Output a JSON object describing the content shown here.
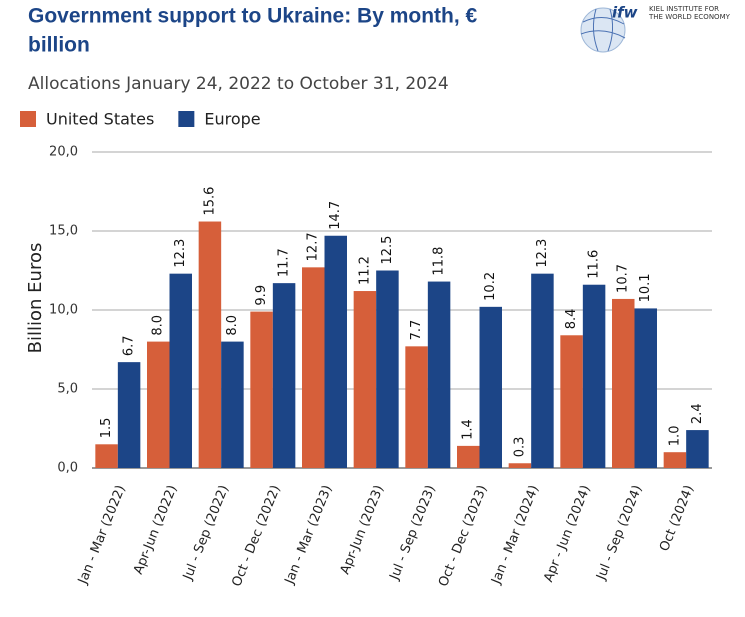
{
  "logo": {
    "mark": "ifw",
    "name": [
      "KIEL INSTITUTE FOR",
      "THE WORLD ECONOMY"
    ]
  },
  "chart_data": {
    "type": "bar",
    "title": [
      "Government support to Ukraine: By month, €",
      "billion"
    ],
    "subtitle": "Allocations January 24, 2022 to October 31, 2024",
    "y_label": "Billion Euros",
    "categories": [
      "Jan - Mar (2022)",
      "Apr-Jun (2022)",
      "Jul - Sep (2022)",
      "Oct - Dec (2022)",
      "Jan - Mar (2023)",
      "Apr-Jun (2023)",
      "Jul - Sep (2023)",
      "Oct - Dec (2023)",
      "Jan - Mar (2024)",
      "Apr - Jun (2024)",
      "Jul - Sep (2024)",
      "Oct (2024)"
    ],
    "series": [
      {
        "name": "United States",
        "color": "#d65f3a",
        "values": [
          1.5,
          8.0,
          15.6,
          9.9,
          12.7,
          11.2,
          7.7,
          1.4,
          0.3,
          8.4,
          10.7,
          1.0
        ],
        "value_labels": [
          "1.5",
          "8.0",
          "15.6",
          "9.9",
          "12.7",
          "11.2",
          "7.7",
          "1.4",
          "0.3",
          "8.4",
          "10.7",
          "1.0"
        ]
      },
      {
        "name": "Europe",
        "color": "#1c4587",
        "values": [
          6.7,
          12.3,
          8.0,
          11.7,
          14.7,
          12.5,
          11.8,
          10.2,
          12.3,
          11.6,
          10.1,
          2.4
        ],
        "value_labels": [
          "6.7",
          "12.3",
          "8.0",
          "11.7",
          "14.7",
          "12.5",
          "11.8",
          "10.2",
          "12.3",
          "11.6",
          "10.1",
          "2.4"
        ]
      }
    ],
    "ylim": [
      0,
      20
    ],
    "yticks": [
      {
        "value": 0,
        "label": "0,0"
      },
      {
        "value": 5,
        "label": "5,0"
      },
      {
        "value": 10,
        "label": "10,0"
      },
      {
        "value": 15,
        "label": "15,0"
      },
      {
        "value": 20,
        "label": "20,0"
      }
    ],
    "grid": true,
    "legend": "top-left"
  }
}
